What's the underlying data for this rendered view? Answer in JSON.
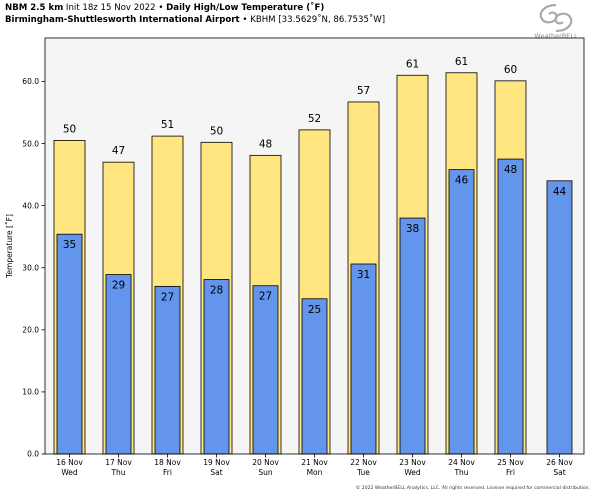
{
  "header": {
    "model": "NBM 2.5 km",
    "init": "Init 18z 15 Nov 2022",
    "bullet": "•",
    "product": "Daily High/Low Temperature (˚F)",
    "location": "Birmingham-Shuttlesworth International Airport",
    "station": "KBHM [33.5629˚N, 86.7535˚W]"
  },
  "logo": {
    "text": "WeatherBELL",
    "icon": "storm-swirl-logo"
  },
  "copyright": "© 2022 WeatherBELL Analytics, LLC. All rights reserved. License required for commercial distribution.",
  "colors": {
    "high": "#ffe680",
    "low": "#6495ed",
    "plot_bg": "#f5f5f5",
    "outline": "#000000"
  },
  "chart_data": {
    "type": "bar",
    "title": "Daily High/Low Temperature (˚F)",
    "ylabel": "Temperature [˚F]",
    "ylim": [
      0,
      67
    ],
    "yticks": [
      "0.0",
      "10.0",
      "20.0",
      "30.0",
      "40.0",
      "50.0",
      "60.0"
    ],
    "ytick_values": [
      0,
      10,
      20,
      30,
      40,
      50,
      60
    ],
    "categories": [
      "16 Nov",
      "17 Nov",
      "18 Nov",
      "19 Nov",
      "20 Nov",
      "21 Nov",
      "22 Nov",
      "23 Nov",
      "24 Nov",
      "25 Nov",
      "26 Nov"
    ],
    "days": [
      "Wed",
      "Thu",
      "Fri",
      "Sat",
      "Sun",
      "Mon",
      "Tue",
      "Wed",
      "Thu",
      "Fri",
      "Sat"
    ],
    "series": [
      {
        "key": "high",
        "values": [
          50.5,
          47,
          51.2,
          50.2,
          48.1,
          52.2,
          56.7,
          61,
          61.4,
          60.1,
          null
        ],
        "labels": [
          "50",
          "47",
          "51",
          "50",
          "48",
          "52",
          "57",
          "61",
          "61",
          "60",
          ""
        ]
      },
      {
        "key": "low",
        "values": [
          35.4,
          28.9,
          27,
          28.1,
          27.1,
          25,
          30.6,
          38,
          45.8,
          47.5,
          44
        ],
        "labels": [
          "35",
          "29",
          "27",
          "28",
          "27",
          "25",
          "31",
          "38",
          "46",
          "48",
          "44"
        ]
      }
    ],
    "grid": false
  }
}
